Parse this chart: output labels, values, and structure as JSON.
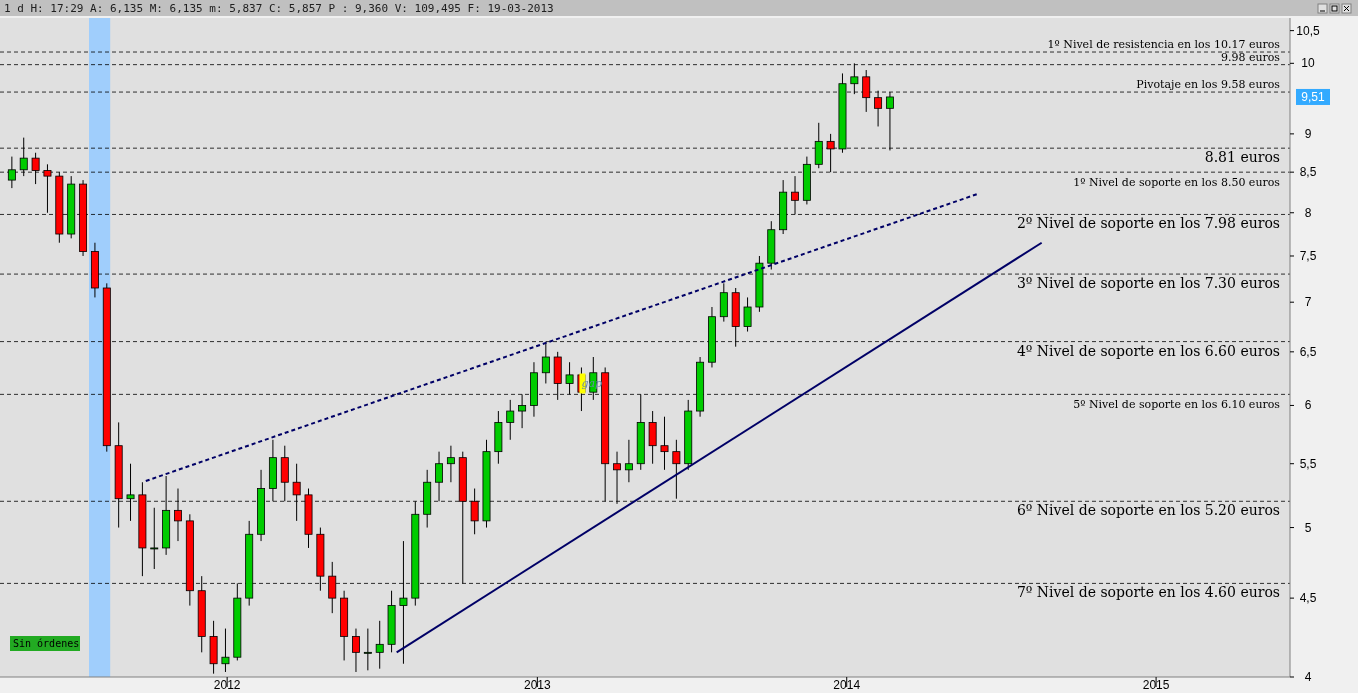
{
  "chart_data": {
    "type": "candlestick",
    "subtitle": "1 d H: 17:29 A: 6,135 M: 6,135 m: 5,837 C: 5,857 P : 9,360 V: 109,495 F: 19-03-2013",
    "x": [
      "2011-04-22",
      "2011-05-06",
      "2011-05-20",
      "2011-06-03",
      "2011-06-17",
      "2011-07-01",
      "2011-07-15",
      "2011-07-29",
      "2011-08-12",
      "2011-08-26",
      "2011-09-09",
      "2011-09-23",
      "2011-10-07",
      "2011-10-21",
      "2011-11-04",
      "2011-11-18",
      "2011-12-02",
      "2011-12-16",
      "2011-12-30",
      "2012-01-13",
      "2012-01-27",
      "2012-02-10",
      "2012-02-24",
      "2012-03-09",
      "2012-03-23",
      "2012-04-06",
      "2012-04-20",
      "2012-05-04",
      "2012-05-18",
      "2012-06-01",
      "2012-06-15",
      "2012-06-29",
      "2012-07-13",
      "2012-07-27",
      "2012-08-10",
      "2012-08-24",
      "2012-09-07",
      "2012-09-21",
      "2012-10-05",
      "2012-10-19",
      "2012-11-02",
      "2012-11-16",
      "2012-11-30",
      "2012-12-14",
      "2012-12-28",
      "2013-01-11",
      "2013-01-25",
      "2013-02-08",
      "2013-02-22",
      "2013-03-08",
      "2013-03-22",
      "2013-04-05",
      "2013-04-19",
      "2013-05-03",
      "2013-05-17",
      "2013-05-31",
      "2013-06-14",
      "2013-06-28",
      "2013-07-12",
      "2013-07-26",
      "2013-08-09",
      "2013-08-23",
      "2013-09-06",
      "2013-09-20",
      "2013-10-04",
      "2013-10-18",
      "2013-11-01",
      "2013-11-15",
      "2013-11-29",
      "2013-12-13",
      "2013-12-27",
      "2014-01-10",
      "2014-01-24",
      "2014-02-07",
      "2014-02-21"
    ],
    "ohlc": [
      [
        8.4,
        8.7,
        8.3,
        8.53
      ],
      [
        8.53,
        8.95,
        8.45,
        8.68
      ],
      [
        8.68,
        8.75,
        8.35,
        8.52
      ],
      [
        8.52,
        8.6,
        8.0,
        8.45
      ],
      [
        8.45,
        8.5,
        7.65,
        7.75
      ],
      [
        7.75,
        8.45,
        7.7,
        8.35
      ],
      [
        8.35,
        8.4,
        7.5,
        7.55
      ],
      [
        7.55,
        7.65,
        7.05,
        7.15
      ],
      [
        7.15,
        7.2,
        5.6,
        5.65
      ],
      [
        5.65,
        5.85,
        5.0,
        5.22
      ],
      [
        5.22,
        5.5,
        5.05,
        5.25
      ],
      [
        5.25,
        5.35,
        4.65,
        4.85
      ],
      [
        4.85,
        5.15,
        4.7,
        4.85
      ],
      [
        4.85,
        5.4,
        4.8,
        5.13
      ],
      [
        5.13,
        5.3,
        4.9,
        5.05
      ],
      [
        5.05,
        5.1,
        4.45,
        4.55
      ],
      [
        4.55,
        4.65,
        4.15,
        4.25
      ],
      [
        4.25,
        4.35,
        4.02,
        4.08
      ],
      [
        4.08,
        4.3,
        4.03,
        4.12
      ],
      [
        4.12,
        4.6,
        4.1,
        4.5
      ],
      [
        4.5,
        5.05,
        4.45,
        4.95
      ],
      [
        4.95,
        5.45,
        4.9,
        5.3
      ],
      [
        5.3,
        5.7,
        5.2,
        5.55
      ],
      [
        5.55,
        5.65,
        5.2,
        5.35
      ],
      [
        5.35,
        5.5,
        5.05,
        5.25
      ],
      [
        5.25,
        5.3,
        4.85,
        4.95
      ],
      [
        4.95,
        5.0,
        4.55,
        4.65
      ],
      [
        4.65,
        4.75,
        4.4,
        4.5
      ],
      [
        4.5,
        4.55,
        4.1,
        4.25
      ],
      [
        4.25,
        4.3,
        4.03,
        4.15
      ],
      [
        4.15,
        4.3,
        4.04,
        4.15
      ],
      [
        4.15,
        4.35,
        4.05,
        4.2
      ],
      [
        4.2,
        4.55,
        4.15,
        4.45
      ],
      [
        4.45,
        4.9,
        4.08,
        4.5
      ],
      [
        4.5,
        5.2,
        4.45,
        5.1
      ],
      [
        5.1,
        5.45,
        5.0,
        5.35
      ],
      [
        5.35,
        5.6,
        5.2,
        5.5
      ],
      [
        5.5,
        5.65,
        5.35,
        5.55
      ],
      [
        5.55,
        5.6,
        4.6,
        5.2
      ],
      [
        5.2,
        5.3,
        4.95,
        5.05
      ],
      [
        5.05,
        5.7,
        5.0,
        5.6
      ],
      [
        5.6,
        5.95,
        5.5,
        5.85
      ],
      [
        5.85,
        6.05,
        5.7,
        5.95
      ],
      [
        5.95,
        6.1,
        5.8,
        6.0
      ],
      [
        6.0,
        6.4,
        5.9,
        6.3
      ],
      [
        6.3,
        6.6,
        6.2,
        6.45
      ],
      [
        6.45,
        6.5,
        6.05,
        6.2
      ],
      [
        6.2,
        6.4,
        6.1,
        6.28
      ],
      [
        6.28,
        6.35,
        5.95,
        6.12
      ],
      [
        6.12,
        6.45,
        6.05,
        6.3
      ],
      [
        6.3,
        6.35,
        5.2,
        5.5
      ],
      [
        5.5,
        5.6,
        5.18,
        5.45
      ],
      [
        5.45,
        5.7,
        5.35,
        5.5
      ],
      [
        5.5,
        6.1,
        5.45,
        5.85
      ],
      [
        5.85,
        5.95,
        5.5,
        5.65
      ],
      [
        5.65,
        5.9,
        5.45,
        5.6
      ],
      [
        5.6,
        5.7,
        5.22,
        5.5
      ],
      [
        5.5,
        6.05,
        5.45,
        5.95
      ],
      [
        5.95,
        6.45,
        5.9,
        6.4
      ],
      [
        6.4,
        6.95,
        6.35,
        6.85
      ],
      [
        6.85,
        7.2,
        6.8,
        7.1
      ],
      [
        7.1,
        7.15,
        6.55,
        6.75
      ],
      [
        6.75,
        7.05,
        6.7,
        6.95
      ],
      [
        6.95,
        7.5,
        6.9,
        7.42
      ],
      [
        7.42,
        7.9,
        7.35,
        7.8
      ],
      [
        7.8,
        8.4,
        7.75,
        8.25
      ],
      [
        8.25,
        8.45,
        7.98,
        8.15
      ],
      [
        8.15,
        8.7,
        8.1,
        8.6
      ],
      [
        8.6,
        9.15,
        8.55,
        8.9
      ],
      [
        8.9,
        9.0,
        8.5,
        8.8
      ],
      [
        8.8,
        9.85,
        8.75,
        9.7
      ],
      [
        9.7,
        10.0,
        9.55,
        9.8
      ],
      [
        9.8,
        9.9,
        9.3,
        9.5
      ],
      [
        9.5,
        9.6,
        9.1,
        9.35
      ],
      [
        9.35,
        9.58,
        8.78,
        9.51
      ]
    ],
    "series": [
      {
        "type": "line",
        "color": "#000066",
        "line_style": "dashed",
        "x": [
          "2011-09-27",
          "2014-06-05"
        ],
        "values": [
          5.36,
          8.23
        ]
      },
      {
        "type": "line",
        "color": "#000066",
        "line_style": "solid",
        "x": [
          "2012-07-19",
          "2014-08-19"
        ],
        "values": [
          4.15,
          7.65
        ]
      }
    ],
    "log": "y",
    "xlim": [
      "2011-04-08",
      "2015-06-08"
    ],
    "xticks": [
      {
        "value": "2012-01-01",
        "label": "2012"
      },
      {
        "value": "2013-01-01",
        "label": "2013"
      },
      {
        "value": "2014-01-01",
        "label": "2014"
      },
      {
        "value": "2015-01-01",
        "label": "2015"
      }
    ],
    "ylim": [
      4,
      10.7
    ],
    "yticks": [
      4,
      {
        "value": 4.5,
        "label": "4,5"
      },
      5,
      {
        "value": 5.5,
        "label": "5,5"
      },
      6,
      {
        "value": 6.5,
        "label": "6,5"
      },
      7,
      {
        "value": 7.5,
        "label": "7,5"
      },
      8,
      {
        "value": 8.5,
        "label": "8,5"
      },
      9,
      10,
      {
        "value": 10.5,
        "label": "10,5"
      }
    ],
    "ref_lines": [
      {
        "axis": "y",
        "value": 10.17,
        "label": "1º Nivel de resistencia en los 10.17 euros",
        "color": "#000000",
        "line_style": "dashed"
      },
      {
        "axis": "y",
        "value": 9.98,
        "label": "9.98 euros",
        "color": "#000000",
        "line_style": "dashed"
      },
      {
        "axis": "y",
        "value": 9.58,
        "label": "Pivotaje en los 9.58 euros",
        "color": "#000000",
        "line_style": "dashed"
      },
      {
        "axis": "y",
        "value": 8.81,
        "label": "8.81 euros",
        "color": "#000000",
        "line_style": "dashed"
      },
      {
        "axis": "y",
        "value": 8.5,
        "label": "1º Nivel de soporte en los 8.50 euros",
        "color": "#000000",
        "line_style": "dashed"
      },
      {
        "axis": "y",
        "value": 7.98,
        "label": "2º Nivel de soporte en los 7.98 euros",
        "color": "#000000",
        "line_style": "dashed"
      },
      {
        "axis": "y",
        "value": 7.3,
        "label": "3º Nivel de soporte en los 7.30 euros",
        "color": "#000000",
        "line_style": "dashed"
      },
      {
        "axis": "y",
        "value": 6.6,
        "label": "4º Nivel de soporte en los 6.60 euros",
        "color": "#000000",
        "line_style": "dashed"
      },
      {
        "axis": "y",
        "value": 6.1,
        "label": "5º Nivel de soporte en los 6.10 euros",
        "color": "#000000",
        "line_style": "dashed"
      },
      {
        "axis": "y",
        "value": 5.2,
        "label": "6º Nivel de soporte en los 5.20 euros",
        "color": "#000000",
        "line_style": "dashed"
      },
      {
        "axis": "y",
        "value": 4.6,
        "label": "7º Nivel de soporte en los 4.60 euros",
        "color": "#000000",
        "line_style": "dashed"
      }
    ],
    "bands": [
      {
        "axis": "x",
        "from": "2011-07-22",
        "to": "2011-08-16",
        "color": "#99ccff"
      }
    ],
    "annotations": [
      {
        "text": "gap",
        "x": "2013-02-22",
        "y": 6.2
      },
      "9,51",
      "Sin órdenes"
    ]
  }
}
